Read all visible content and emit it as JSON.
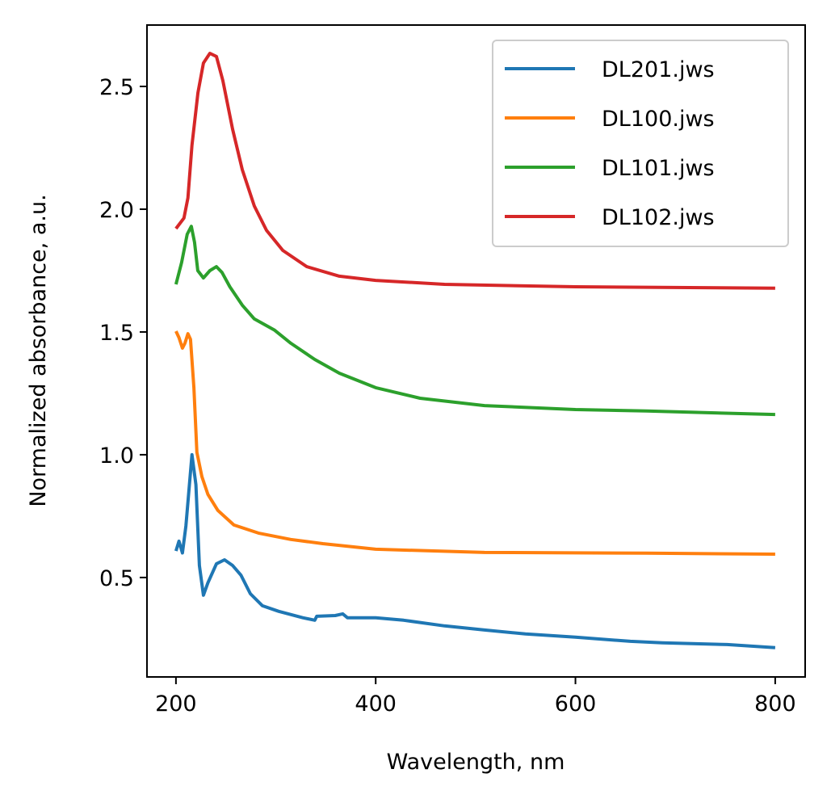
{
  "chart_data": {
    "type": "line",
    "title": "",
    "xlabel": "Wavelength, nm",
    "ylabel": "Normalized absorbance, a.u.",
    "xlim": [
      171,
      830
    ],
    "ylim": [
      0.095,
      2.75
    ],
    "xticks": [
      200,
      400,
      600,
      800
    ],
    "yticks": [
      0.5,
      1.0,
      1.5,
      2.0,
      2.5
    ],
    "xtick_labels": [
      "200",
      "400",
      "600",
      "800"
    ],
    "ytick_labels": [
      "0.5",
      "1.0",
      "1.5",
      "2.0",
      "2.5"
    ],
    "grid": false,
    "legend_position": "top-right",
    "series": [
      {
        "name": "DL201.jws",
        "color": "#1f77b4",
        "x": [
          200,
          203,
          206.5,
          210,
          216,
          220,
          223.5,
          227.5,
          232,
          240.5,
          248.6,
          256.7,
          265,
          274.5,
          286.6,
          303,
          327,
          339,
          341,
          359.5,
          367,
          371.7,
          400,
          428,
          469,
          509,
          550,
          600,
          655,
          687,
          752,
          800
        ],
        "y": [
          0.608,
          0.648,
          0.6,
          0.71,
          1.0,
          0.878,
          0.549,
          0.428,
          0.478,
          0.556,
          0.572,
          0.549,
          0.51,
          0.434,
          0.385,
          0.362,
          0.336,
          0.326,
          0.342,
          0.345,
          0.352,
          0.336,
          0.336,
          0.326,
          0.303,
          0.286,
          0.27,
          0.257,
          0.24,
          0.234,
          0.227,
          0.214
        ]
      },
      {
        "name": "DL100.jws",
        "color": "#ff7f0e",
        "x": [
          200,
          203,
          206.5,
          209,
          212,
          214.6,
          218,
          221,
          226,
          232,
          242,
          258,
          282.6,
          315,
          347,
          400,
          509,
          671,
          800
        ],
        "y": [
          1.503,
          1.477,
          1.434,
          1.454,
          1.493,
          1.47,
          1.273,
          1.01,
          0.911,
          0.839,
          0.773,
          0.714,
          0.681,
          0.655,
          0.638,
          0.615,
          0.602,
          0.599,
          0.595
        ]
      },
      {
        "name": "DL101.jws",
        "color": "#2ca02c",
        "x": [
          200,
          205.7,
          211.3,
          215.4,
          218.6,
          221.9,
          227.5,
          234,
          240.5,
          246,
          254,
          266.4,
          278.5,
          298.8,
          315,
          339,
          363.6,
          400,
          444.5,
          509,
          600,
          671,
          800
        ],
        "y": [
          1.694,
          1.783,
          1.898,
          1.93,
          1.865,
          1.75,
          1.72,
          1.75,
          1.766,
          1.743,
          1.684,
          1.609,
          1.553,
          1.507,
          1.454,
          1.388,
          1.332,
          1.273,
          1.23,
          1.2,
          1.184,
          1.178,
          1.164
        ]
      },
      {
        "name": "DL102.jws",
        "color": "#d62728",
        "x": [
          200,
          208,
          212,
          216,
          222,
          227.5,
          234,
          240.5,
          247,
          256.7,
          266.4,
          278.5,
          290.7,
          307,
          331,
          363.6,
          400,
          469,
          600,
          800
        ],
        "y": [
          1.921,
          1.964,
          2.046,
          2.26,
          2.474,
          2.595,
          2.635,
          2.622,
          2.523,
          2.326,
          2.161,
          2.013,
          1.914,
          1.832,
          1.766,
          1.727,
          1.71,
          1.694,
          1.684,
          1.678
        ]
      }
    ]
  }
}
